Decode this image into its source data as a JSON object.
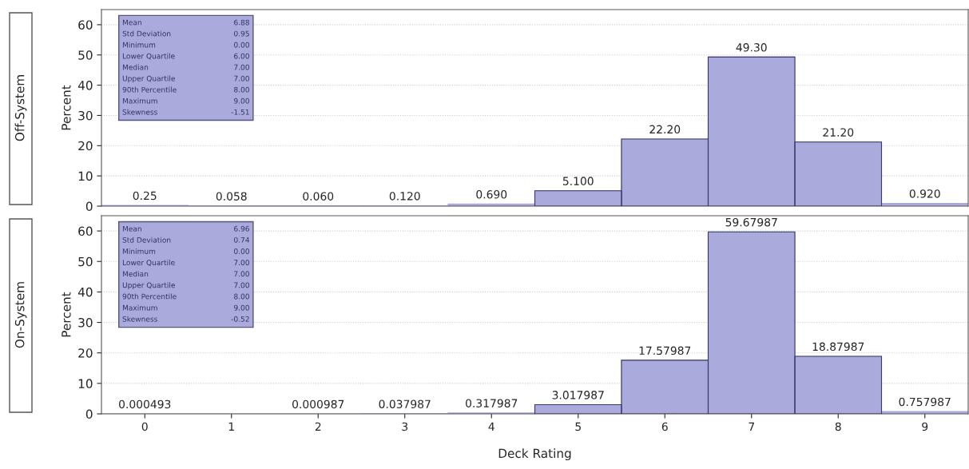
{
  "chart_data": [
    {
      "type": "bar",
      "title": "Off-System",
      "ylabel": "Percent",
      "categories": [
        "0",
        "1",
        "2",
        "3",
        "4",
        "5",
        "6",
        "7",
        "8",
        "9"
      ],
      "series": [
        {
          "color": "#aaaadc",
          "values": [
            0.25,
            0.058,
            0.06,
            0.12,
            0.69,
            5.1,
            22.2,
            49.3,
            21.2,
            0.92
          ],
          "value_labels": [
            "0.25",
            "0.058",
            "0.060",
            "0.120",
            "0.690",
            "5.100",
            "22.20",
            "49.30",
            "21.20",
            "0.920"
          ]
        }
      ],
      "ylim": [
        0,
        65
      ],
      "yticks": [
        0,
        10,
        20,
        30,
        40,
        50,
        60
      ],
      "grid": "y",
      "tick_labels": "y",
      "annotations": [
        "Mean",
        "6.88",
        "Std Deviation",
        "0.95",
        "Minimum",
        "0.00",
        "Lower Quartile",
        "6.00",
        "Median",
        "7.00",
        "Upper Quartile",
        "7.00",
        "90th Percentile",
        "8.00",
        "Maximum",
        "9.00",
        "Skewness",
        "-1.51"
      ]
    },
    {
      "type": "bar",
      "title": "On-System",
      "ylabel": "Percent",
      "xlabel": "Deck Rating",
      "categories": [
        "0",
        "1",
        "2",
        "3",
        "4",
        "5",
        "6",
        "7",
        "8",
        "9"
      ],
      "series": [
        {
          "color": "#aaaadc",
          "values": [
            0.000493,
            0,
            0.000987,
            0.037987,
            0.317987,
            3.017987,
            17.57987,
            59.67987,
            18.87987,
            0.757987
          ],
          "value_labels": [
            "0.000493",
            null,
            "0.000987",
            "0.037987",
            "0.317987",
            "3.017987",
            "17.57987",
            "59.67987",
            "18.87987",
            "0.757987"
          ]
        }
      ],
      "ylim": [
        0,
        65
      ],
      "yticks": [
        0,
        10,
        20,
        30,
        40,
        50,
        60
      ],
      "grid": "y",
      "annotations": [
        "Mean",
        "6.96",
        "Std Deviation",
        "0.74",
        "Minimum",
        "0.00",
        "Lower Quartile",
        "7.00",
        "Median",
        "7.00",
        "Upper Quartile",
        "7.00",
        "90th Percentile",
        "8.00",
        "Maximum",
        "9.00",
        "Skewness",
        "-0.52"
      ]
    }
  ]
}
